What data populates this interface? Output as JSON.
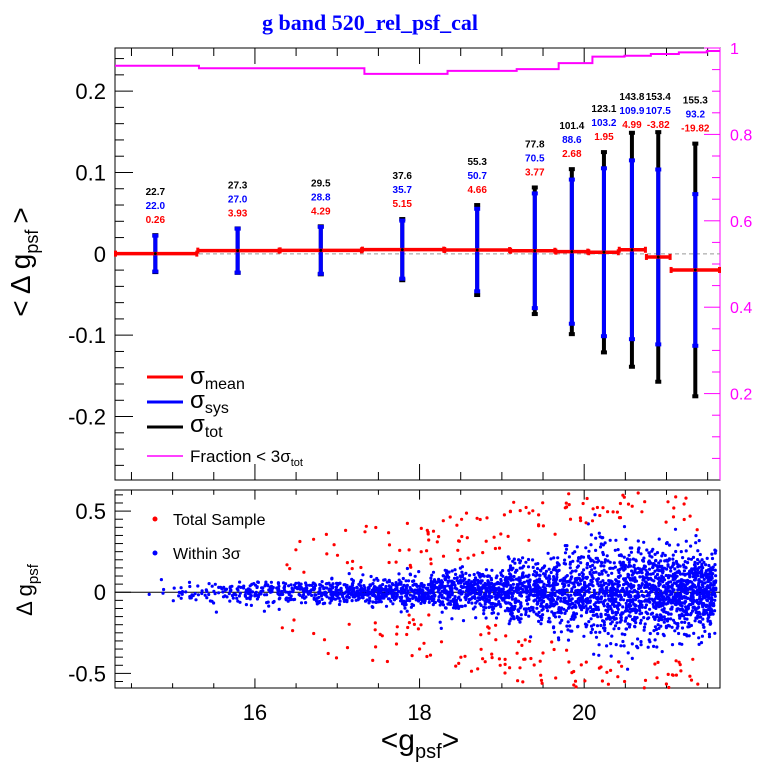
{
  "chart_data": [
    {
      "type": "line",
      "title": "g band 520_rel_psf_cal",
      "ylabel": "< Δ g_psf >",
      "ylabel_main": "< Δ g",
      "ylabel_sub": "psf",
      "ylabel_close": ">",
      "xlim": [
        14.3,
        21.65
      ],
      "ylim": [
        -0.278,
        0.253
      ],
      "y_ticks": [
        -0.2,
        -0.1,
        0,
        0.1,
        0.2
      ],
      "y_tick_labels": [
        "-0.2",
        "-0.1",
        "0",
        "0.1",
        "0.2"
      ],
      "right_axis": {
        "ylim": [
          0,
          1
        ],
        "ticks": [
          0.2,
          0.4,
          0.6,
          0.8,
          1
        ],
        "tick_labels": [
          "0.2",
          "0.4",
          "0.6",
          "0.8",
          "1"
        ],
        "color": "#ff00ff"
      },
      "bins": [
        [
          14.3,
          15.3
        ],
        [
          15.3,
          16.3
        ],
        [
          16.3,
          17.3
        ],
        [
          17.3,
          18.3
        ],
        [
          18.3,
          19.1
        ],
        [
          19.1,
          19.65
        ],
        [
          19.65,
          20.05
        ],
        [
          20.05,
          20.42
        ],
        [
          20.42,
          20.75
        ],
        [
          20.75,
          21.05
        ],
        [
          21.05,
          21.65
        ]
      ],
      "x": [
        14.79,
        15.79,
        16.8,
        17.79,
        18.7,
        19.4,
        19.85,
        20.24,
        20.58,
        20.9,
        21.35
      ],
      "series": [
        {
          "name": "σ_mean",
          "color": "#ff0000",
          "values_mmag": [
            0.26,
            3.93,
            4.29,
            5.15,
            4.66,
            3.77,
            2.68,
            1.95,
            4.99,
            -3.82,
            -19.82
          ],
          "labels": [
            "0.26",
            "3.93",
            "4.29",
            "5.15",
            "4.66",
            "3.77",
            "2.68",
            "1.95",
            "4.99",
            "-3.82",
            "-19.82"
          ]
        },
        {
          "name": "σ_sys",
          "color": "#0000ff",
          "values_mmag": [
            22.0,
            27.0,
            28.8,
            35.7,
            50.7,
            70.5,
            88.6,
            103.2,
            109.9,
            107.5,
            93.2
          ],
          "labels": [
            "22.0",
            "27.0",
            "28.8",
            "35.7",
            "50.7",
            "70.5",
            "88.6",
            "103.2",
            "109.9",
            "107.5",
            "93.2"
          ]
        },
        {
          "name": "σ_tot",
          "color": "#000000",
          "values_mmag": [
            22.7,
            27.3,
            29.5,
            37.6,
            55.3,
            77.8,
            101.4,
            123.1,
            143.8,
            153.4,
            155.3
          ],
          "labels": [
            "22.7",
            "27.3",
            "29.5",
            "37.6",
            "55.3",
            "77.8",
            "101.4",
            "123.1",
            "143.8",
            "153.4",
            "155.3"
          ]
        }
      ],
      "fraction": {
        "name": "Fraction < 3σ_tot",
        "color": "#ff00ff",
        "edges": [
          14.3,
          15.32,
          17.33,
          18.34,
          19.18,
          19.69,
          20.1,
          20.49,
          20.81,
          21.15,
          21.49,
          21.65
        ],
        "values": [
          0.959,
          0.953,
          0.94,
          0.947,
          0.951,
          0.965,
          0.98,
          0.982,
          0.986,
          0.99,
          0.993
        ]
      },
      "legend": {
        "placement": "bottom-left",
        "items": [
          {
            "sym": "σ",
            "sub": "mean",
            "color": "#ff0000"
          },
          {
            "sym": "σ",
            "sub": "sys",
            "color": "#0000ff"
          },
          {
            "sym": "σ",
            "sub": "tot",
            "color": "#000000"
          },
          {
            "text": "Fraction < 3σ",
            "sub": "tot",
            "color": "#ff00ff"
          }
        ]
      }
    },
    {
      "type": "scatter",
      "xlabel_main": "<g",
      "xlabel_sub": "psf",
      "xlabel_close": ">",
      "ylabel_main": "Δ g",
      "ylabel_sub": "psf",
      "xlim": [
        14.3,
        21.65
      ],
      "ylim": [
        -0.59,
        0.63
      ],
      "x_ticks": [
        16,
        18,
        20
      ],
      "x_tick_labels": [
        "16",
        "18",
        "20"
      ],
      "y_ticks": [
        -0.5,
        0,
        0.5
      ],
      "y_tick_labels": [
        "-0.5",
        "0",
        "0.5"
      ],
      "series": [
        {
          "name": "Total Sample",
          "color": "#ff0000"
        },
        {
          "name": "Within 3σ",
          "color": "#0000ff"
        }
      ],
      "legend": {
        "placement": "top-left"
      }
    }
  ]
}
